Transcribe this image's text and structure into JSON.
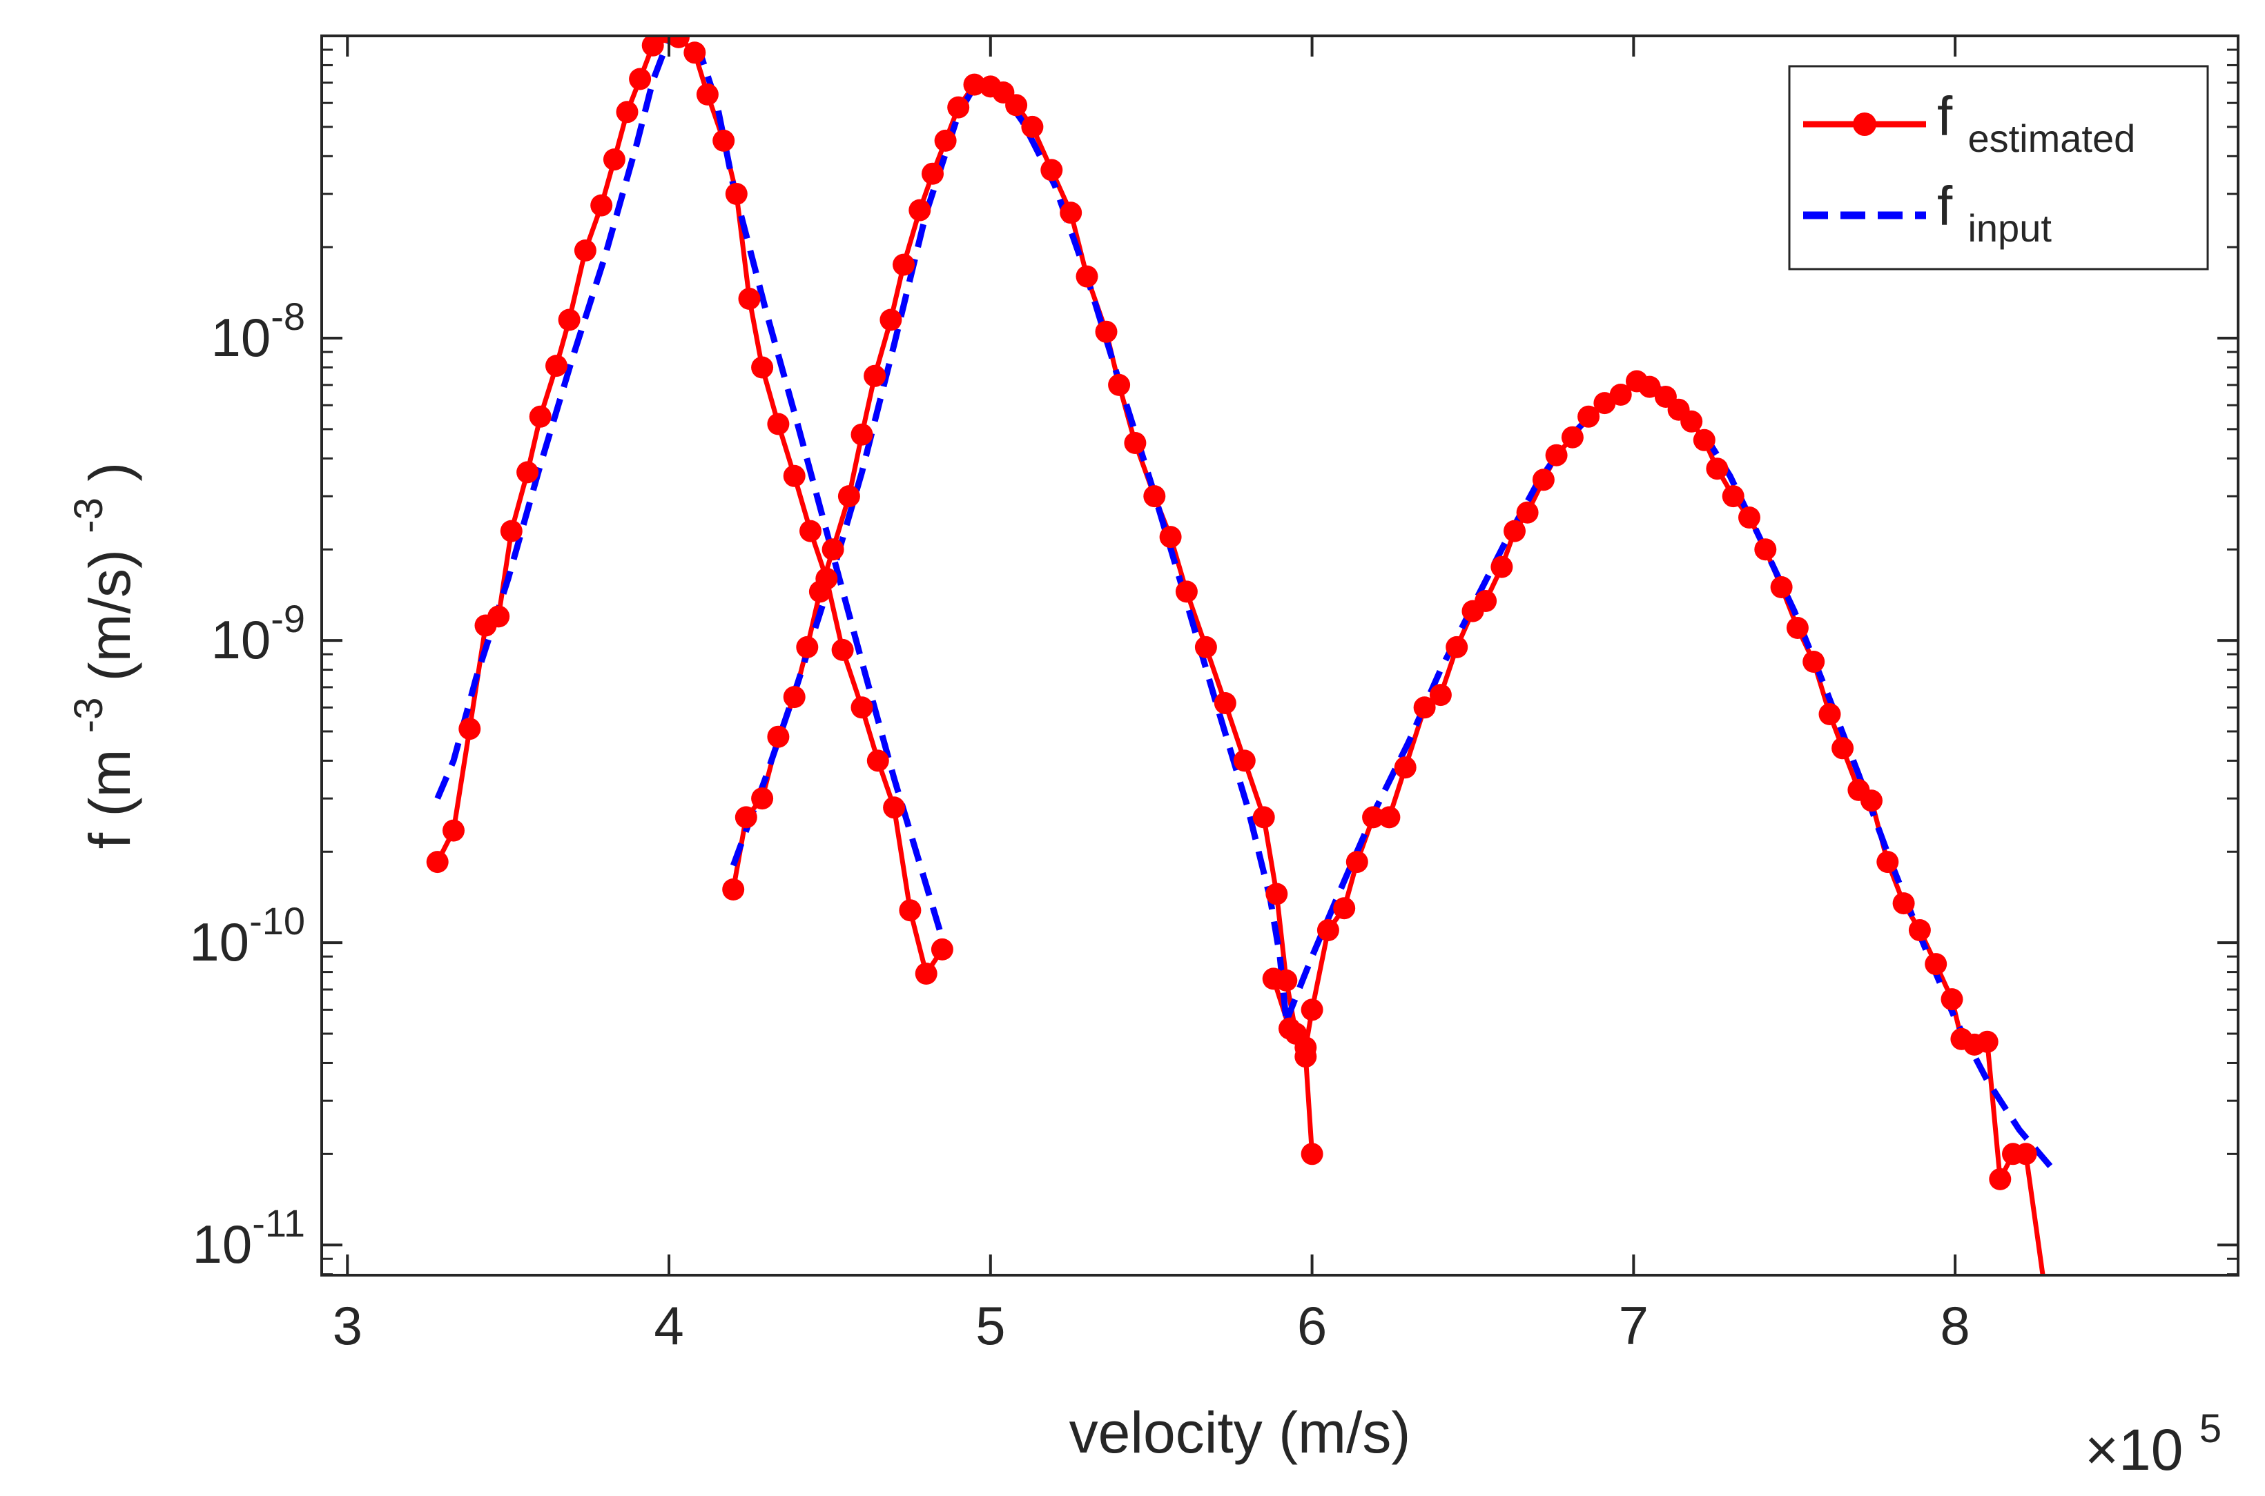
{
  "chart_data": {
    "type": "line",
    "title": "",
    "xlabel": "velocity (m/s)",
    "ylabel": "f (m",
    "ylabel_sup1": "-3",
    "ylabel_mid": " (m/s)",
    "ylabel_sup2": "-3",
    "ylabel_end": ")",
    "x_exponent_base": "×10",
    "x_exponent_power": "5",
    "x_scale": "linear",
    "y_scale": "log",
    "xlim": [
      2.92,
      8.88
    ],
    "ylim_log10": [
      -11.1,
      -7.0
    ],
    "xticks": [
      3,
      4,
      5,
      6,
      7,
      8
    ],
    "xtick_labels": [
      "3",
      "4",
      "5",
      "6",
      "7",
      "8"
    ],
    "yticks_log10": [
      -8,
      -9,
      -10,
      -11
    ],
    "ytick_base": "10",
    "ytick_exponents": [
      "-8",
      "-9",
      "-10",
      "-11"
    ],
    "grid": false,
    "legend_position": "top-right",
    "colors": {
      "estimated": "#ff0000",
      "input": "#0000ff",
      "axes": "#262626"
    },
    "series": [
      {
        "name": "estimated",
        "legend_main": "f",
        "legend_sub": "estimated",
        "style": "solid-with-markers",
        "segments": [
          [
            [
              3.28,
              1.85e-10
            ],
            [
              3.33,
              2.35e-10
            ],
            [
              3.38,
              5.1e-10
            ],
            [
              3.43,
              1.12e-09
            ],
            [
              3.47,
              1.2e-09
            ],
            [
              3.51,
              2.3e-09
            ],
            [
              3.56,
              3.6e-09
            ],
            [
              3.6,
              5.5e-09
            ],
            [
              3.65,
              8.1e-09
            ],
            [
              3.69,
              1.15e-08
            ],
            [
              3.74,
              1.95e-08
            ],
            [
              3.79,
              2.75e-08
            ],
            [
              3.83,
              3.9e-08
            ],
            [
              3.87,
              5.6e-08
            ],
            [
              3.91,
              7.2e-08
            ],
            [
              3.95,
              9.3e-08
            ],
            [
              3.99,
              1.03e-07
            ],
            [
              4.03,
              9.9e-08
            ],
            [
              4.08,
              8.8e-08
            ],
            [
              4.12,
              6.4e-08
            ],
            [
              4.17,
              4.5e-08
            ],
            [
              4.21,
              3e-08
            ],
            [
              4.25,
              1.35e-08
            ],
            [
              4.29,
              8e-09
            ],
            [
              4.34,
              5.2e-09
            ],
            [
              4.39,
              3.5e-09
            ],
            [
              4.44,
              2.3e-09
            ],
            [
              4.49,
              1.6e-09
            ],
            [
              4.54,
              9.3e-10
            ],
            [
              4.6,
              6e-10
            ],
            [
              4.65,
              4e-10
            ],
            [
              4.7,
              2.8e-10
            ],
            [
              4.75,
              1.28e-10
            ],
            [
              4.8,
              7.9e-11
            ],
            [
              4.85,
              9.5e-11
            ]
          ],
          [
            [
              4.2,
              1.5e-10
            ],
            [
              4.24,
              2.6e-10
            ],
            [
              4.29,
              3e-10
            ],
            [
              4.34,
              4.8e-10
            ],
            [
              4.39,
              6.5e-10
            ],
            [
              4.43,
              9.5e-10
            ],
            [
              4.47,
              1.45e-09
            ],
            [
              4.51,
              2e-09
            ],
            [
              4.56,
              3e-09
            ],
            [
              4.6,
              4.8e-09
            ],
            [
              4.64,
              7.5e-09
            ],
            [
              4.69,
              1.15e-08
            ],
            [
              4.73,
              1.75e-08
            ],
            [
              4.78,
              2.65e-08
            ],
            [
              4.82,
              3.5e-08
            ],
            [
              4.86,
              4.5e-08
            ],
            [
              4.9,
              5.8e-08
            ],
            [
              4.95,
              6.9e-08
            ],
            [
              5.0,
              6.8e-08
            ],
            [
              5.04,
              6.5e-08
            ],
            [
              5.08,
              5.9e-08
            ],
            [
              5.13,
              5e-08
            ],
            [
              5.19,
              3.6e-08
            ],
            [
              5.25,
              2.6e-08
            ],
            [
              5.3,
              1.6e-08
            ],
            [
              5.36,
              1.05e-08
            ],
            [
              5.4,
              7e-09
            ],
            [
              5.45,
              4.5e-09
            ],
            [
              5.51,
              3e-09
            ],
            [
              5.56,
              2.2e-09
            ],
            [
              5.61,
              1.45e-09
            ],
            [
              5.67,
              9.5e-10
            ],
            [
              5.73,
              6.2e-10
            ],
            [
              5.79,
              4e-10
            ],
            [
              5.85,
              2.6e-10
            ],
            [
              5.89,
              1.45e-10
            ],
            [
              5.92,
              7.5e-11
            ],
            [
              5.95,
              5e-11
            ],
            [
              5.98,
              4.2e-11
            ],
            [
              6.0,
              2e-11
            ]
          ],
          [
            [
              5.88,
              7.6e-11
            ],
            [
              5.93,
              5.2e-11
            ],
            [
              5.98,
              4.5e-11
            ],
            [
              6.0,
              6e-11
            ],
            [
              6.05,
              1.1e-10
            ],
            [
              6.1,
              1.3e-10
            ],
            [
              6.14,
              1.85e-10
            ],
            [
              6.19,
              2.6e-10
            ],
            [
              6.24,
              2.6e-10
            ],
            [
              6.29,
              3.8e-10
            ],
            [
              6.35,
              6e-10
            ],
            [
              6.4,
              6.6e-10
            ],
            [
              6.45,
              9.5e-10
            ],
            [
              6.5,
              1.25e-09
            ],
            [
              6.54,
              1.35e-09
            ],
            [
              6.59,
              1.75e-09
            ],
            [
              6.63,
              2.3e-09
            ],
            [
              6.67,
              2.65e-09
            ],
            [
              6.72,
              3.4e-09
            ],
            [
              6.76,
              4.1e-09
            ],
            [
              6.81,
              4.7e-09
            ],
            [
              6.86,
              5.5e-09
            ],
            [
              6.91,
              6.1e-09
            ],
            [
              6.96,
              6.5e-09
            ],
            [
              7.01,
              7.2e-09
            ],
            [
              7.05,
              6.9e-09
            ],
            [
              7.1,
              6.4e-09
            ],
            [
              7.14,
              5.8e-09
            ],
            [
              7.18,
              5.3e-09
            ],
            [
              7.22,
              4.6e-09
            ],
            [
              7.26,
              3.7e-09
            ],
            [
              7.31,
              3e-09
            ],
            [
              7.36,
              2.55e-09
            ],
            [
              7.41,
              2e-09
            ],
            [
              7.46,
              1.5e-09
            ],
            [
              7.51,
              1.1e-09
            ],
            [
              7.56,
              8.5e-10
            ],
            [
              7.61,
              5.7e-10
            ],
            [
              7.65,
              4.4e-10
            ],
            [
              7.7,
              3.2e-10
            ],
            [
              7.74,
              2.95e-10
            ],
            [
              7.79,
              1.85e-10
            ],
            [
              7.84,
              1.35e-10
            ],
            [
              7.89,
              1.1e-10
            ],
            [
              7.94,
              8.5e-11
            ],
            [
              7.99,
              6.5e-11
            ],
            [
              8.02,
              4.8e-11
            ],
            [
              8.06,
              4.6e-11
            ],
            [
              8.1,
              4.7e-11
            ],
            [
              8.14,
              1.65e-11
            ],
            [
              8.18,
              2e-11
            ],
            [
              8.22,
              2e-11
            ],
            [
              8.28,
              7e-12
            ]
          ]
        ]
      },
      {
        "name": "input",
        "legend_main": "f",
        "legend_sub": "input",
        "style": "dashed",
        "segments": [
          [
            [
              3.28,
              3e-10
            ],
            [
              3.33,
              4e-10
            ],
            [
              3.4,
              7.5e-10
            ],
            [
              3.5,
              1.6e-09
            ],
            [
              3.6,
              3.8e-09
            ],
            [
              3.7,
              8.6e-09
            ],
            [
              3.8,
              1.85e-08
            ],
            [
              3.9,
              4.4e-08
            ],
            [
              3.95,
              7.1e-08
            ],
            [
              4.0,
              9.8e-08
            ],
            [
              4.05,
              1.02e-07
            ],
            [
              4.1,
              8.6e-08
            ],
            [
              4.15,
              5.9e-08
            ],
            [
              4.2,
              3.2e-08
            ],
            [
              4.3,
              1.25e-08
            ],
            [
              4.4,
              5.2e-09
            ],
            [
              4.5,
              2.1e-09
            ],
            [
              4.6,
              8.5e-10
            ],
            [
              4.7,
              3.5e-10
            ],
            [
              4.8,
              1.55e-10
            ],
            [
              4.86,
              9.5e-11
            ]
          ],
          [
            [
              4.2,
              1.8e-10
            ],
            [
              4.3,
              3.5e-10
            ],
            [
              4.4,
              7.2e-10
            ],
            [
              4.5,
              1.55e-09
            ],
            [
              4.6,
              3.6e-09
            ],
            [
              4.7,
              9.5e-09
            ],
            [
              4.8,
              2.6e-08
            ],
            [
              4.9,
              5.5e-08
            ],
            [
              4.95,
              6.8e-08
            ],
            [
              5.0,
              6.9e-08
            ],
            [
              5.05,
              6.2e-08
            ],
            [
              5.1,
              5.2e-08
            ],
            [
              5.2,
              3.2e-08
            ],
            [
              5.3,
              1.6e-08
            ],
            [
              5.4,
              7.2e-09
            ],
            [
              5.5,
              3.3e-09
            ],
            [
              5.6,
              1.45e-09
            ],
            [
              5.7,
              6.3e-10
            ],
            [
              5.8,
              2.8e-10
            ],
            [
              5.87,
              1.4e-10
            ],
            [
              5.9,
              9e-11
            ],
            [
              5.92,
              5.5e-11
            ]
          ],
          [
            [
              5.92,
              5.5e-11
            ],
            [
              6.0,
              9e-11
            ],
            [
              6.1,
              1.6e-10
            ],
            [
              6.2,
              2.8e-10
            ],
            [
              6.3,
              4.6e-10
            ],
            [
              6.4,
              8e-10
            ],
            [
              6.5,
              1.3e-09
            ],
            [
              6.6,
              2.1e-09
            ],
            [
              6.7,
              3.3e-09
            ],
            [
              6.8,
              4.7e-09
            ],
            [
              6.9,
              6e-09
            ],
            [
              7.0,
              7e-09
            ],
            [
              7.05,
              7.1e-09
            ],
            [
              7.1,
              6.6e-09
            ],
            [
              7.2,
              5.2e-09
            ],
            [
              7.3,
              3.5e-09
            ],
            [
              7.4,
              2.1e-09
            ],
            [
              7.5,
              1.25e-09
            ],
            [
              7.6,
              6.8e-10
            ],
            [
              7.7,
              3.6e-10
            ],
            [
              7.8,
              1.85e-10
            ],
            [
              7.9,
              1e-10
            ],
            [
              8.0,
              5.6e-11
            ],
            [
              8.1,
              3.5e-11
            ],
            [
              8.2,
              2.4e-11
            ],
            [
              8.3,
              1.8e-11
            ]
          ]
        ]
      }
    ]
  }
}
